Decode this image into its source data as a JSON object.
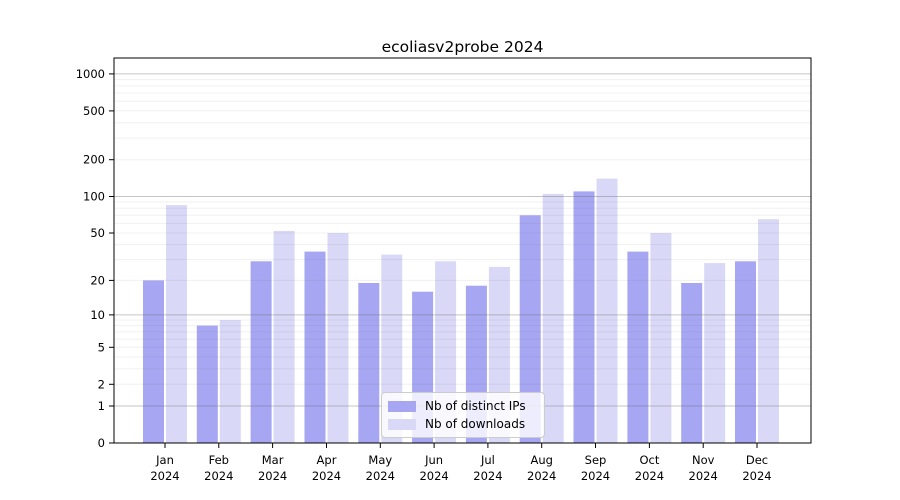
{
  "chart_data": {
    "type": "bar",
    "title": "ecoliasv2probe 2024",
    "categories": [
      "Jan 2024",
      "Feb 2024",
      "Mar 2024",
      "Apr 2024",
      "May 2024",
      "Jun 2024",
      "Jul 2024",
      "Aug 2024",
      "Sep 2024",
      "Oct 2024",
      "Nov 2024",
      "Dec 2024"
    ],
    "series": [
      {
        "name": "Nb of distinct IPs",
        "color": "#a6a6f2",
        "values": [
          20,
          8,
          29,
          35,
          19,
          16,
          18,
          70,
          110,
          35,
          19,
          29
        ]
      },
      {
        "name": "Nb of downloads",
        "color": "#d9d9f7",
        "values": [
          85,
          9,
          52,
          50,
          33,
          29,
          26,
          105,
          140,
          50,
          28,
          65
        ]
      }
    ],
    "xlabel": "",
    "ylabel": "",
    "yscale": "log1p",
    "yticks": [
      0,
      1,
      2,
      5,
      10,
      20,
      50,
      100,
      200,
      500,
      1000
    ],
    "ylim": [
      0,
      1300
    ],
    "grid": "horizontal",
    "grid_major_values": [
      1,
      10,
      100,
      1000
    ],
    "grid_minor_values": [
      2,
      3,
      4,
      5,
      6,
      7,
      8,
      9,
      20,
      30,
      40,
      50,
      60,
      70,
      80,
      90,
      200,
      300,
      400,
      500,
      600,
      700,
      800,
      900
    ],
    "legend_position": "lower center",
    "colors": {
      "bar_distinct_ips": "#a6a6f2",
      "bar_downloads": "#d9d9f7",
      "grid_major": "rgba(110,110,110,0.40)",
      "grid_minor": "rgba(110,110,110,0.10)",
      "axis": "#000000",
      "background": "#ffffff"
    }
  }
}
